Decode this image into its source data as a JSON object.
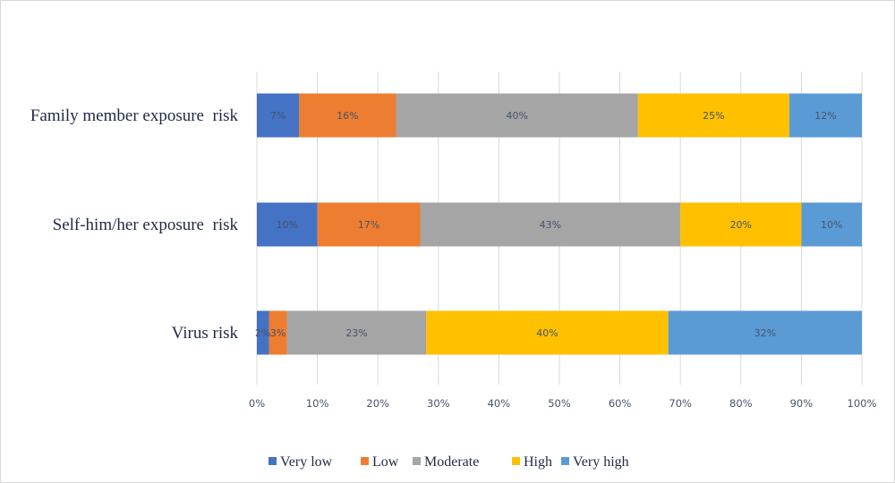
{
  "chart_data": {
    "type": "bar",
    "orientation": "horizontal",
    "stacked": "percent",
    "title": "",
    "xlabel": "",
    "ylabel": "",
    "categories": [
      "Family member exposure  risk",
      "Self-him/her exposure  risk",
      "Virus risk"
    ],
    "series": [
      {
        "name": "Very low",
        "color": "#4472c4",
        "values": [
          7,
          10,
          2
        ],
        "labels": [
          "7%",
          "10%",
          "2%"
        ]
      },
      {
        "name": "Low",
        "color": "#ed7d31",
        "values": [
          16,
          17,
          3
        ],
        "labels": [
          "16%",
          "17%",
          "3%"
        ]
      },
      {
        "name": "Moderate",
        "color": "#a5a5a5",
        "values": [
          40,
          43,
          23
        ],
        "labels": [
          "40%",
          "43%",
          "23%"
        ]
      },
      {
        "name": "High",
        "color": "#ffc000",
        "values": [
          25,
          20,
          40
        ],
        "labels": [
          "25%",
          "20%",
          "40%"
        ]
      },
      {
        "name": "Very high",
        "color": "#5b9bd5",
        "values": [
          12,
          10,
          32
        ],
        "labels": [
          "12%",
          "10%",
          "32%"
        ]
      }
    ],
    "xlim": [
      0,
      100
    ],
    "x_ticks": [
      "0%",
      "10%",
      "20%",
      "30%",
      "40%",
      "50%",
      "60%",
      "70%",
      "80%",
      "90%",
      "100%"
    ],
    "grid": true,
    "legend_position": "bottom"
  }
}
